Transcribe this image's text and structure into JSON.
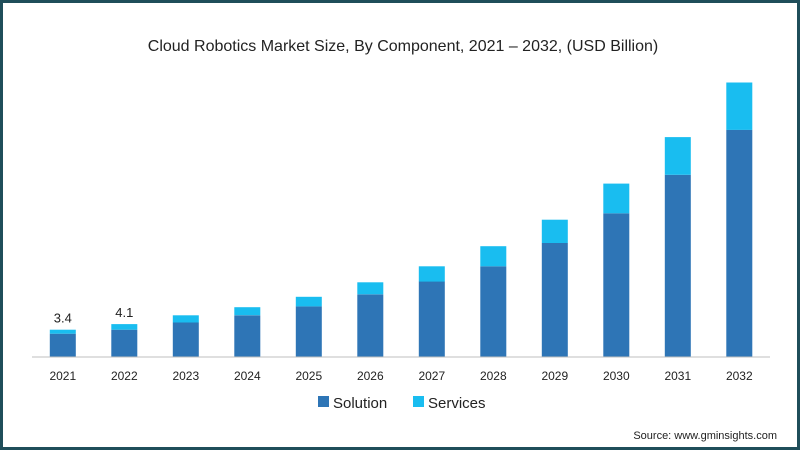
{
  "chart_data": {
    "type": "bar",
    "stacked": true,
    "title": "Cloud Robotics Market Size, By Component, 2021 – 2032, (USD Billion)",
    "xlabel": "",
    "ylabel": "",
    "categories": [
      "2021",
      "2022",
      "2023",
      "2024",
      "2025",
      "2026",
      "2027",
      "2028",
      "2029",
      "2030",
      "2031",
      "2032"
    ],
    "series": [
      {
        "name": "Solution",
        "color": "#2e75b6",
        "values": [
          2.9,
          3.4,
          4.3,
          5.2,
          6.3,
          7.8,
          9.4,
          11.3,
          14.2,
          17.9,
          22.7,
          28.3
        ]
      },
      {
        "name": "Services",
        "color": "#19bdf0",
        "values": [
          0.5,
          0.7,
          0.9,
          1.0,
          1.2,
          1.5,
          1.9,
          2.5,
          2.9,
          3.7,
          4.7,
          5.9
        ]
      }
    ],
    "data_labels": {
      "2021": "3.4",
      "2022": "4.1"
    },
    "ylim": [
      0,
      37
    ],
    "grid": false,
    "legend_position": "bottom"
  },
  "source": "Source: www.gminsights.com"
}
